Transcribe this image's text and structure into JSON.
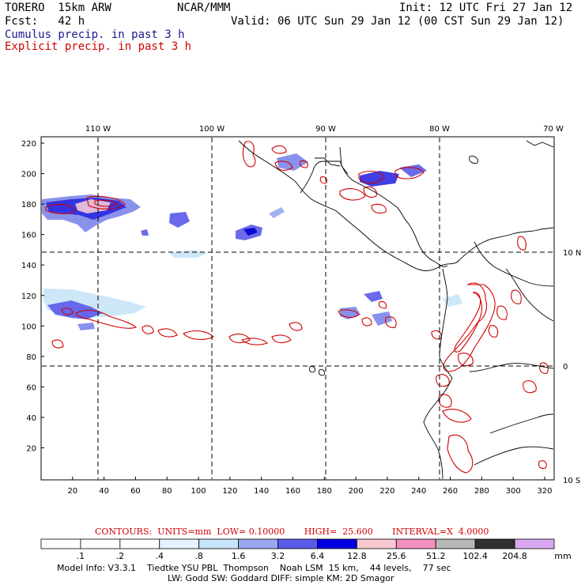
{
  "header": {
    "model_name": "TORERO  15km ARW",
    "center": "NCAR/MMM",
    "init": "Init: 12 UTC Fri 27 Jan 12",
    "fcst": "Fcst:   42 h",
    "valid": "Valid: 06 UTC Sun 29 Jan 12 (00 CST Sun 29 Jan 12)",
    "line_cumulus": "Cumulus precip. in past 3 h",
    "line_explicit": "Explicit precip. in past 3 h",
    "cumulus_color": "#1a1a8c",
    "explicit_color": "#d00000"
  },
  "map": {
    "top_lon_labels": [
      "110 W",
      "100 W",
      "90 W",
      "80 W",
      "70 W"
    ],
    "right_lat_labels": [
      "10 N",
      "0",
      "10 S"
    ],
    "left_y_ticks": [
      "20",
      "40",
      "60",
      "80",
      "100",
      "120",
      "140",
      "160",
      "180",
      "200",
      "220"
    ],
    "bottom_x_ticks": [
      "20",
      "40",
      "60",
      "80",
      "100",
      "120",
      "140",
      "160",
      "180",
      "200",
      "220",
      "240",
      "260",
      "280",
      "300",
      "320"
    ]
  },
  "contours_line": "CONTOURS:  UNITS=mm  LOW= 0.10000       HIGH=  25.600       INTERVAL=X  4.0000",
  "colorbar": {
    "labels": [
      ".1",
      ".2",
      ".4",
      ".8",
      "1.6",
      "3.2",
      "6.4",
      "12.8",
      "25.6",
      "51.2",
      "102.4",
      "204.8"
    ],
    "unit": "mm",
    "colors": [
      "#ffffff",
      "#ffffff",
      "#ffffff",
      "#e6f2ff",
      "#c8e4f8",
      "#9aa8f0",
      "#5a5ae8",
      "#0000e0",
      "#f8c8d0",
      "#f090c0",
      "#b8b8b8",
      "#303030",
      "#d8a8f0"
    ]
  },
  "footer": {
    "line1": "Model Info: V3.3.1    Tiedtke YSU PBL  Thompson    Noah LSM  15 km,    44 levels,    77 sec",
    "line2": "LW: Godd SW: Goddard DIFF: simple KM: 2D Smagor"
  }
}
